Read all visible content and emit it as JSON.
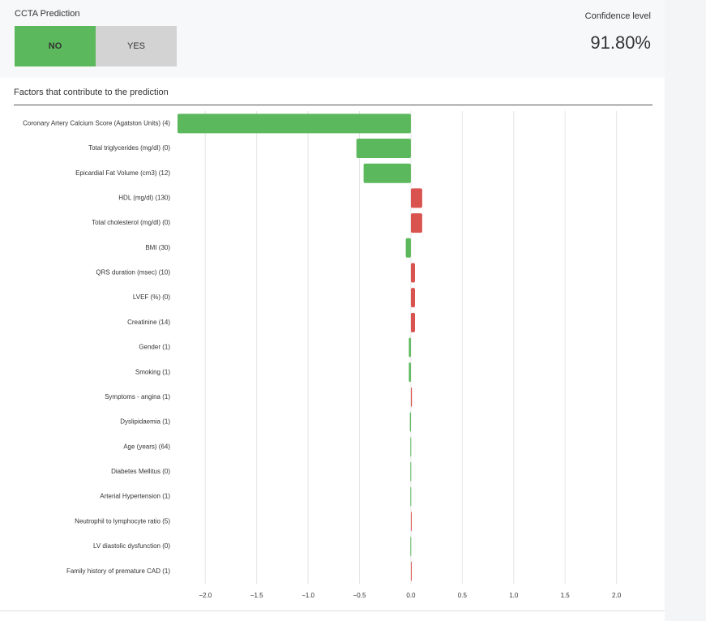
{
  "header": {
    "title": "CCTA Prediction",
    "options": [
      "NO",
      "YES"
    ],
    "selected": "NO",
    "confidence_label": "Confidence level",
    "confidence_value": "91.80%"
  },
  "chart_data": {
    "type": "hbar",
    "title": "Factors that contribute to the prediction",
    "categories": [
      "Coronary Artery Calcium Score (Agatston Units) (4)",
      "Total triglycerides (mg/dl) (0)",
      "Epicardial Fat Volume (cm3) (12)",
      "HDL (mg/dl) (130)",
      "Total cholesterol (mg/dl) (0)",
      "BMI (30)",
      "QRS duration (msec) (10)",
      "LVEF (%) (0)",
      "Creatinine (14)",
      "Gender (1)",
      "Smoking (1)",
      "Symptoms - angina (1)",
      "Dyslipidaemia (1)",
      "Age (years) (64)",
      "Diabetes Mellitus (0)",
      "Arterial Hypertension (1)",
      "Neutrophil to lymphocyte ratio (5)",
      "LV diastolic dysfunction (0)",
      "Family history of premature CAD (1)"
    ],
    "values": [
      -2.27,
      -0.53,
      -0.46,
      0.11,
      0.11,
      -0.05,
      0.04,
      0.04,
      0.04,
      -0.02,
      -0.02,
      0.01,
      -0.01,
      -0.005,
      -0.005,
      -0.005,
      0.005,
      -0.005,
      0.005
    ],
    "negative_color": "#5cb85c",
    "positive_color": "#d9534f",
    "xlim": [
      -2.27,
      2.35
    ],
    "xticks": [
      {
        "value": -2,
        "label": "−2.0"
      },
      {
        "value": -1.5,
        "label": "−1.5"
      },
      {
        "value": -1,
        "label": "−1.0"
      },
      {
        "value": -0.5,
        "label": "−0.5"
      },
      {
        "value": 0,
        "label": "0.0"
      },
      0.5,
      {
        "value": 1,
        "label": "1.0"
      },
      1.5,
      {
        "value": 2,
        "label": "2.0"
      }
    ],
    "grid": true
  }
}
